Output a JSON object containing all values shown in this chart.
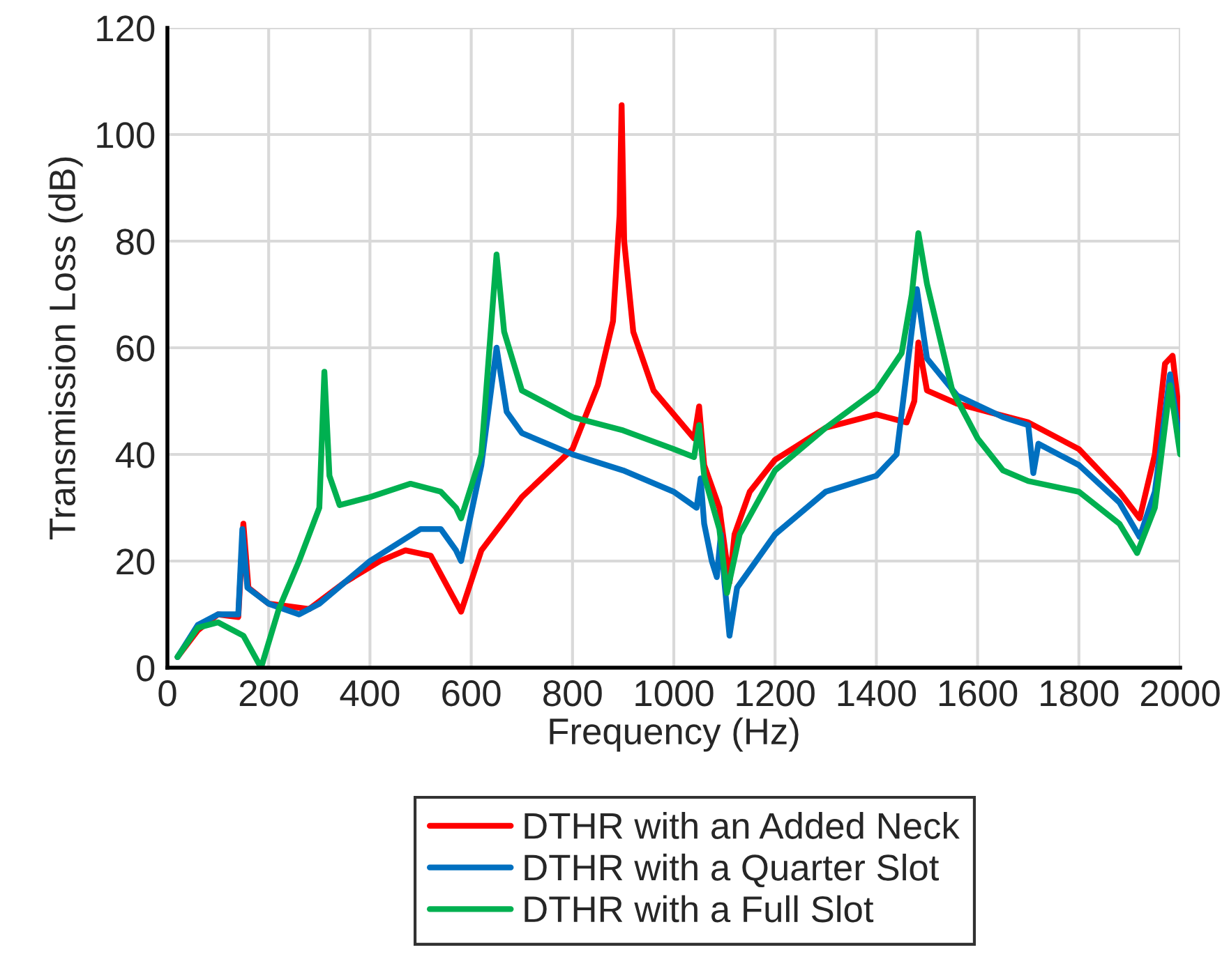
{
  "chart_data": {
    "type": "line",
    "xlabel": "Frequency (Hz)",
    "ylabel": "Transmission Loss (dB)",
    "xlim": [
      0,
      2000
    ],
    "xticks": [
      0,
      200,
      400,
      600,
      800,
      1000,
      1200,
      1400,
      1600,
      1800,
      2000
    ],
    "ylim": [
      0,
      120
    ],
    "yticks": [
      0,
      20,
      40,
      60,
      80,
      100,
      120
    ],
    "grid": true,
    "legend": "bottom",
    "marker": "none",
    "line_style": "solid",
    "series": [
      {
        "name": "DTHR with an Added Neck",
        "color": "#ff0000",
        "x": [
          20,
          60,
          100,
          140,
          150,
          160,
          200,
          280,
          350,
          420,
          470,
          520,
          560,
          580,
          620,
          700,
          800,
          850,
          880,
          893,
          897,
          902,
          920,
          960,
          1040,
          1050,
          1060,
          1090,
          1110,
          1120,
          1150,
          1200,
          1300,
          1400,
          1460,
          1475,
          1483,
          1500,
          1560,
          1700,
          1800,
          1880,
          1920,
          1950,
          1970,
          1985,
          2000
        ],
        "values": [
          2,
          7,
          10,
          9.5,
          27,
          15,
          12,
          11,
          16,
          20,
          22,
          21,
          14,
          10.5,
          22,
          32,
          41,
          53,
          65,
          85,
          105.5,
          80,
          63,
          52,
          43,
          49,
          38,
          30,
          16,
          25,
          33,
          39,
          45,
          47.5,
          46,
          50,
          61,
          52,
          49.5,
          46,
          41,
          33,
          28,
          40,
          57,
          58.5,
          46
        ]
      },
      {
        "name": "DTHR with a Quarter Slot",
        "color": "#0070c0",
        "x": [
          20,
          60,
          100,
          140,
          148,
          158,
          200,
          260,
          300,
          400,
          500,
          540,
          570,
          580,
          620,
          650,
          670,
          700,
          800,
          900,
          1000,
          1045,
          1053,
          1060,
          1075,
          1085,
          1093,
          1100,
          1110,
          1125,
          1200,
          1300,
          1400,
          1440,
          1480,
          1500,
          1560,
          1650,
          1700,
          1710,
          1720,
          1800,
          1880,
          1920,
          1950,
          1980,
          2000
        ],
        "values": [
          2,
          8,
          10,
          10,
          26,
          15,
          12,
          10,
          12,
          20,
          26,
          26,
          22,
          20,
          38,
          60,
          48,
          44,
          40,
          37,
          33,
          30,
          35.5,
          27,
          20,
          17,
          25,
          16,
          6,
          15,
          25,
          33,
          36,
          40,
          71,
          58,
          51,
          47,
          45.5,
          36.5,
          42,
          38,
          31,
          24.5,
          33,
          55,
          42
        ]
      },
      {
        "name": "DTHR with a Full Slot",
        "color": "#00b050",
        "x": [
          20,
          60,
          100,
          150,
          185,
          220,
          260,
          300,
          310,
          320,
          340,
          400,
          480,
          540,
          570,
          580,
          620,
          650,
          665,
          700,
          800,
          900,
          1000,
          1040,
          1050,
          1060,
          1090,
          1105,
          1130,
          1200,
          1300,
          1400,
          1450,
          1470,
          1483,
          1500,
          1550,
          1600,
          1650,
          1700,
          1800,
          1880,
          1915,
          1950,
          1980,
          2000
        ],
        "values": [
          2,
          7.5,
          8.5,
          6,
          0,
          11,
          20,
          30,
          55.5,
          36,
          30.5,
          32,
          34.5,
          33,
          30,
          28,
          40,
          77.5,
          63,
          52,
          47,
          44.5,
          41,
          39.5,
          45.5,
          36,
          26,
          14,
          25,
          37,
          45,
          52,
          59,
          70,
          81.5,
          72,
          52,
          43,
          37,
          35,
          33,
          27,
          21.5,
          30,
          53,
          40
        ]
      }
    ]
  }
}
